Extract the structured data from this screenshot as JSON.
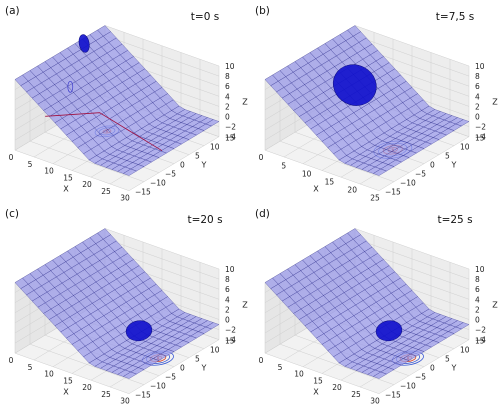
{
  "chart_data": [
    {
      "type": "surface3d",
      "panel_label": "(a)",
      "title": "t=0 s",
      "xlabel": "X",
      "ylabel": "Y",
      "zlabel": "Z",
      "x_ticks": [
        "0",
        "5",
        "10",
        "15",
        "20",
        "25",
        "30"
      ],
      "y_ticks": [
        "−15",
        "−10",
        "−5",
        "0",
        "5",
        "10",
        "15"
      ],
      "z_ticks": [
        "−4",
        "−2",
        "0",
        "2",
        "4",
        "6",
        "8",
        "10"
      ],
      "xlim": [
        0,
        30
      ],
      "ylim": [
        -15,
        15
      ],
      "zlim": [
        -4,
        10
      ],
      "grid": true,
      "surface": "plane sloping from z≈10 at x=0 to z≈−1 at x≈20, then flat",
      "droplet": {
        "x": 3.2,
        "y": 4,
        "size": "small",
        "elevated": true
      },
      "contours": {
        "x": 10,
        "y": 3,
        "rings": 3,
        "size": 1.0
      },
      "extras": [
        "red reference line",
        "small blue loop"
      ]
    },
    {
      "type": "surface3d",
      "panel_label": "(b)",
      "title": "t=7,5 s",
      "xlabel": "X",
      "ylabel": "Y",
      "zlabel": "Z",
      "x_ticks": [
        "0",
        "5",
        "10",
        "15",
        "20",
        "25"
      ],
      "y_ticks": [
        "−15",
        "−10",
        "−5",
        "0",
        "5",
        "10",
        "15"
      ],
      "z_ticks": [
        "−4",
        "−2",
        "0",
        "2",
        "4",
        "6",
        "8",
        "10"
      ],
      "xlim": [
        0,
        25
      ],
      "ylim": [
        -15,
        15
      ],
      "zlim": [
        -4,
        10
      ],
      "grid": true,
      "droplet": {
        "x": 11,
        "y": 1,
        "size": "large"
      },
      "contours": {
        "x": 21,
        "y": 1,
        "rings": 4,
        "size": 1.6
      }
    },
    {
      "type": "surface3d",
      "panel_label": "(c)",
      "title": "t=20 s",
      "xlabel": "X",
      "ylabel": "Y",
      "zlabel": "Z",
      "x_ticks": [
        "0",
        "5",
        "10",
        "15",
        "20",
        "25",
        "30"
      ],
      "y_ticks": [
        "−15",
        "−10",
        "−5",
        "0",
        "5",
        "10",
        "15"
      ],
      "z_ticks": [
        "−4",
        "−2",
        "0",
        "2",
        "4",
        "6",
        "8",
        "10"
      ],
      "xlim": [
        0,
        30
      ],
      "ylim": [
        -15,
        15
      ],
      "zlim": [
        -4,
        10
      ],
      "grid": true,
      "droplet": {
        "x": 20,
        "y": 1,
        "size": "medium"
      },
      "contours": {
        "x": 25,
        "y": 1,
        "rings": 4,
        "size": 1.3
      }
    },
    {
      "type": "surface3d",
      "panel_label": "(d)",
      "title": "t=25 s",
      "xlabel": "X",
      "ylabel": "Y",
      "zlabel": "Z",
      "x_ticks": [
        "0",
        "5",
        "10",
        "15",
        "20",
        "25",
        "30"
      ],
      "y_ticks": [
        "−15",
        "−10",
        "−5",
        "0",
        "5",
        "10",
        "15"
      ],
      "z_ticks": [
        "−4",
        "−2",
        "0",
        "2",
        "4",
        "6",
        "8",
        "10"
      ],
      "xlim": [
        0,
        30
      ],
      "ylim": [
        -15,
        15
      ],
      "zlim": [
        -4,
        10
      ],
      "grid": true,
      "droplet": {
        "x": 20,
        "y": 1,
        "size": "medium"
      },
      "contours": {
        "x": 25,
        "y": 1,
        "rings": 4,
        "size": 1.3
      }
    }
  ],
  "colors": {
    "surface": "#9b9bea",
    "surface_edge": "#2a2a8a",
    "droplet": "#1010cc",
    "contour_outer": "#3b5bd6",
    "contour_inner": "#d9442b",
    "reference_line": "#a01040",
    "pane": "#ededed",
    "grid": "#cfcfcf"
  }
}
